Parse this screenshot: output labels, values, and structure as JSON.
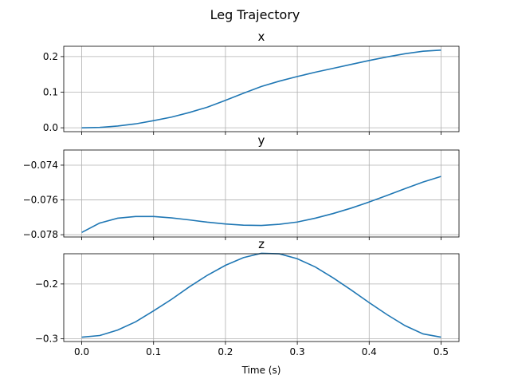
{
  "chart_data": {
    "type": "line",
    "title": "Leg Trajectory",
    "xlabel": "Time (s)",
    "xlim": [
      -0.025,
      0.525
    ],
    "x_ticks": [
      0.0,
      0.1,
      0.2,
      0.3,
      0.4,
      0.5
    ],
    "x_tick_labels": [
      "0.0",
      "0.1",
      "0.2",
      "0.3",
      "0.4",
      "0.5"
    ],
    "grid": true,
    "line_color": "#1f77b4",
    "panels": [
      {
        "title": "x",
        "ylim": [
          -0.0109,
          0.2289
        ],
        "y_ticks": [
          0.0,
          0.1,
          0.2
        ],
        "y_tick_labels": [
          "0.0",
          "0.1",
          "0.2"
        ],
        "x": [
          0,
          0.025,
          0.05,
          0.075,
          0.1,
          0.125,
          0.15,
          0.175,
          0.2,
          0.225,
          0.25,
          0.275,
          0.3,
          0.325,
          0.35,
          0.375,
          0.4,
          0.425,
          0.45,
          0.475,
          0.5
        ],
        "y": [
          0.0,
          0.001,
          0.005,
          0.011,
          0.02,
          0.03,
          0.043,
          0.058,
          0.077,
          0.097,
          0.116,
          0.131,
          0.144,
          0.156,
          0.167,
          0.178,
          0.189,
          0.199,
          0.208,
          0.215,
          0.218
        ]
      },
      {
        "title": "y",
        "ylim": [
          -0.07813,
          -0.07313
        ],
        "y_ticks": [
          -0.078,
          -0.076,
          -0.074
        ],
        "y_tick_labels": [
          "−0.078",
          "−0.076",
          "−0.074"
        ],
        "x": [
          0,
          0.025,
          0.05,
          0.075,
          0.1,
          0.125,
          0.15,
          0.175,
          0.2,
          0.225,
          0.25,
          0.275,
          0.3,
          0.325,
          0.35,
          0.375,
          0.4,
          0.425,
          0.45,
          0.475,
          0.5
        ],
        "y": [
          -0.07787,
          -0.07733,
          -0.07705,
          -0.07695,
          -0.07695,
          -0.07703,
          -0.07715,
          -0.07728,
          -0.07738,
          -0.07745,
          -0.07747,
          -0.0774,
          -0.07727,
          -0.07705,
          -0.07678,
          -0.07647,
          -0.07612,
          -0.07574,
          -0.07535,
          -0.07497,
          -0.07465
        ]
      },
      {
        "title": "z",
        "ylim": [
          -0.3049,
          -0.1449
        ],
        "y_ticks": [
          -0.3,
          -0.2
        ],
        "y_tick_labels": [
          "−0.3",
          "−0.2"
        ],
        "x": [
          0,
          0.025,
          0.05,
          0.075,
          0.1,
          0.125,
          0.15,
          0.175,
          0.2,
          0.225,
          0.25,
          0.275,
          0.3,
          0.325,
          0.35,
          0.375,
          0.4,
          0.425,
          0.45,
          0.475,
          0.5
        ],
        "y": [
          -0.297,
          -0.294,
          -0.284,
          -0.269,
          -0.249,
          -0.228,
          -0.205,
          -0.184,
          -0.166,
          -0.152,
          -0.144,
          -0.145,
          -0.154,
          -0.169,
          -0.189,
          -0.211,
          -0.234,
          -0.256,
          -0.276,
          -0.291,
          -0.297
        ]
      }
    ]
  }
}
